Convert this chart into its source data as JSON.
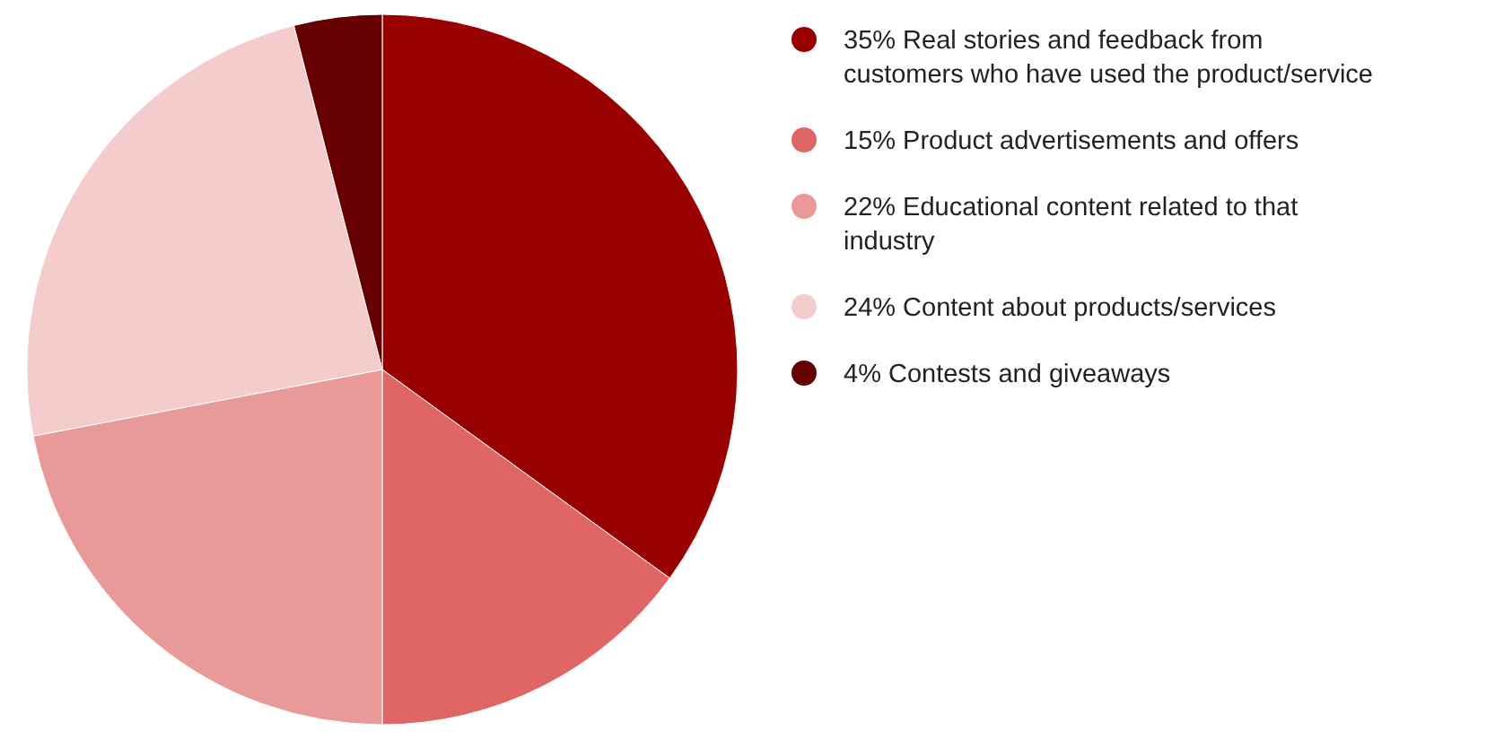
{
  "chart_data": {
    "type": "pie",
    "categories": [
      "35% Real stories and feedback from customers who have used the product/service",
      "15% Product advertisements and offers",
      "22% Educational content related to that industry",
      "24% Content about products/services",
      "4% Contests and giveaways"
    ],
    "values": [
      35,
      15,
      22,
      24,
      4
    ],
    "colors": [
      "#990000",
      "#e06666",
      "#ea9999",
      "#f4cccc",
      "#660000"
    ],
    "legend": "right"
  }
}
